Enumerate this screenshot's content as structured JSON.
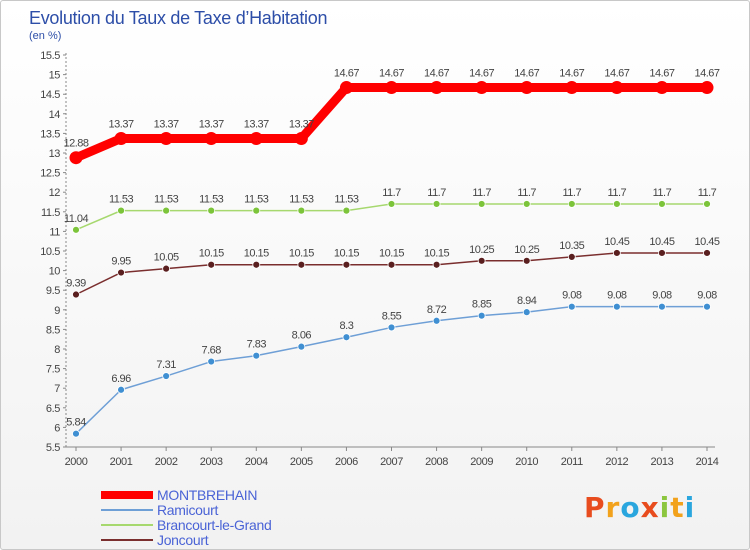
{
  "header": {
    "title": "Evolution du Taux de Taxe d’Habitation",
    "unit": "(en %)"
  },
  "logo": {
    "text": "Proxiti",
    "letters": [
      {
        "ch": "P",
        "color": "#e84c1e"
      },
      {
        "ch": "r",
        "color": "#f2a21c"
      },
      {
        "ch": "o",
        "color": "#2aa6de"
      },
      {
        "ch": "x",
        "color": "#e84c1e"
      },
      {
        "ch": "i",
        "color": "#8cc63f"
      },
      {
        "ch": "t",
        "color": "#f2a21c"
      },
      {
        "ch": "i",
        "color": "#2aa6de"
      }
    ]
  },
  "chart_data": {
    "type": "line",
    "title": "Evolution du Taux de Taxe d’Habitation",
    "ylabel": "(en %)",
    "xlabel": "",
    "ylim": [
      5.5,
      15.5
    ],
    "yticks": [
      5.5,
      6,
      6.5,
      7,
      7.5,
      8,
      8.5,
      9,
      9.5,
      10,
      10.5,
      11,
      11.5,
      12,
      12.5,
      13,
      13.5,
      14,
      14.5,
      15,
      15.5
    ],
    "ytick_labels": [
      "5.5",
      "6",
      "6.5",
      "7",
      "7.5",
      "8",
      "8.5",
      "9",
      "9.5",
      "10",
      "10.5",
      "11",
      "11.5",
      "12",
      "12.5",
      "13",
      "13.5",
      "14",
      "14.5",
      "15",
      "15.5"
    ],
    "x": [
      "2000",
      "2001",
      "2002",
      "2003",
      "2004",
      "2005",
      "2006",
      "2007",
      "2008",
      "2009",
      "2010",
      "2011",
      "2012",
      "2013",
      "2014"
    ],
    "grid": false,
    "legend_position": "bottom-left",
    "series": [
      {
        "name": "MONTBREHAIN",
        "color": "#ff0000",
        "style": "thick",
        "values": [
          12.88,
          13.37,
          13.37,
          13.37,
          13.37,
          13.37,
          14.67,
          14.67,
          14.67,
          14.67,
          14.67,
          14.67,
          14.67,
          14.67,
          14.67
        ],
        "labels": [
          "12.88",
          "13.37",
          "13.37",
          "13.37",
          "13.37",
          "13.37",
          "14.67",
          "14.67",
          "14.67",
          "14.67",
          "14.67",
          "14.67",
          "14.67",
          "14.67",
          "14.67"
        ]
      },
      {
        "name": "Ramicourt",
        "color": "#6e9fd6",
        "marker_color": "#3f8fd2",
        "style": "thin",
        "values": [
          5.84,
          6.96,
          7.31,
          7.68,
          7.83,
          8.06,
          8.3,
          8.55,
          8.72,
          8.85,
          8.94,
          9.08,
          9.08,
          9.08,
          9.08
        ],
        "labels": [
          "5.84",
          "6.96",
          "7.31",
          "7.68",
          "7.83",
          "8.06",
          "8.3",
          "8.55",
          "8.72",
          "8.85",
          "8.94",
          "9.08",
          "9.08",
          "9.08",
          "9.08"
        ]
      },
      {
        "name": "Brancourt-le-Grand",
        "color": "#a6d86e",
        "marker_color": "#7cc43a",
        "style": "thin",
        "values": [
          11.04,
          11.53,
          11.53,
          11.53,
          11.53,
          11.53,
          11.53,
          11.7,
          11.7,
          11.7,
          11.7,
          11.7,
          11.7,
          11.7,
          11.7
        ],
        "labels": [
          "11.04",
          "11.53",
          "11.53",
          "11.53",
          "11.53",
          "11.53",
          "11.53",
          "11.7",
          "11.7",
          "11.7",
          "11.7",
          "11.7",
          "11.7",
          "11.7",
          "11.7"
        ]
      },
      {
        "name": "Joncourt",
        "color": "#7a2e2e",
        "marker_color": "#5a1f1f",
        "style": "thin",
        "values": [
          9.39,
          9.95,
          10.05,
          10.15,
          10.15,
          10.15,
          10.15,
          10.15,
          10.15,
          10.25,
          10.25,
          10.35,
          10.45,
          10.45,
          10.45
        ],
        "labels": [
          "9.39",
          "9.95",
          "10.05",
          "10.15",
          "10.15",
          "10.15",
          "10.15",
          "10.15",
          "10.15",
          "10.25",
          "10.25",
          "10.35",
          "10.45",
          "10.45",
          "10.45"
        ]
      }
    ]
  }
}
